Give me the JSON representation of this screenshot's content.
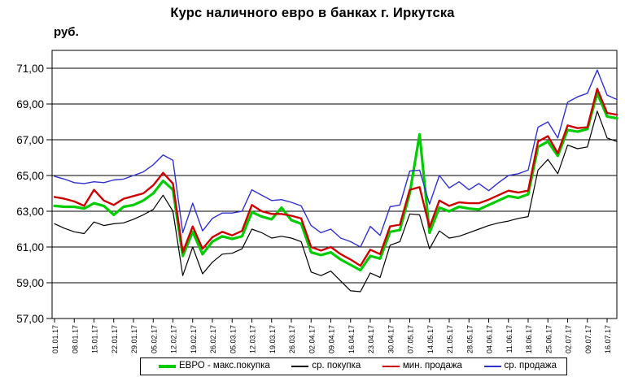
{
  "chart_data": {
    "type": "line",
    "title": "Курс наличного евро в банках г. Иркутска",
    "ylabel": "руб.",
    "xlabel": "",
    "ylim": [
      57,
      72
    ],
    "grid": "horizontal",
    "legend_position": "bottom",
    "y_ticks": [
      {
        "value": 71,
        "label": "71,00"
      },
      {
        "value": 69,
        "label": "69,00"
      },
      {
        "value": 67,
        "label": "67,00"
      },
      {
        "value": 65,
        "label": "65,00"
      },
      {
        "value": 63,
        "label": "63,00"
      },
      {
        "value": 61,
        "label": "61,00"
      },
      {
        "value": 59,
        "label": "59,00"
      },
      {
        "value": 57,
        "label": "57,00"
      }
    ],
    "x_tick_labels": [
      "01.01.17",
      "08.01.17",
      "15.01.17",
      "22.01.17",
      "29.01.17",
      "05.02.17",
      "12.02.17",
      "19.02.17",
      "26.02.17",
      "05.03.17",
      "12.03.17",
      "19.03.17",
      "26.03.17",
      "02.04.17",
      "09.04.17",
      "16.04.17",
      "23.04.17",
      "30.04.17",
      "07.05.17",
      "14.05.17",
      "21.05.17",
      "28.05.17",
      "04.06.17",
      "11.06.17",
      "18.06.17",
      "25.06.17",
      "02.07.17",
      "09.07.17",
      "16.07.17"
    ],
    "sampling_note": "values estimated twice weekly; 2 points per x tick",
    "series": [
      {
        "key": "max-buy",
        "name": "ЕВРО - макс.покупка",
        "color": "#00cc00",
        "stroke_width": 3.2,
        "values": [
          63.3,
          63.25,
          63.25,
          63.15,
          63.45,
          63.3,
          62.8,
          63.25,
          63.35,
          63.6,
          64.0,
          64.7,
          64.2,
          60.5,
          61.85,
          60.6,
          61.3,
          61.6,
          61.45,
          61.6,
          62.95,
          62.7,
          62.55,
          63.2,
          62.5,
          62.3,
          60.7,
          60.55,
          60.7,
          60.3,
          60.0,
          59.7,
          60.5,
          60.35,
          61.85,
          61.95,
          64.0,
          67.3,
          61.8,
          63.2,
          63.0,
          63.25,
          63.15,
          63.1,
          63.35,
          63.6,
          63.85,
          63.75,
          63.95,
          66.6,
          66.9,
          66.1,
          67.55,
          67.45,
          67.6,
          69.6,
          68.3,
          68.2
        ]
      },
      {
        "key": "avg-buy",
        "name": "ср. покупка",
        "color": "#000000",
        "stroke_width": 1.2,
        "values": [
          62.3,
          62.05,
          61.85,
          61.75,
          62.4,
          62.2,
          62.3,
          62.35,
          62.55,
          62.8,
          63.1,
          63.9,
          63.0,
          59.4,
          61.0,
          59.5,
          60.15,
          60.6,
          60.65,
          60.9,
          62.0,
          61.8,
          61.5,
          61.6,
          61.5,
          61.3,
          59.6,
          59.4,
          59.65,
          59.1,
          58.55,
          58.5,
          59.55,
          59.3,
          61.1,
          61.3,
          62.85,
          62.8,
          60.9,
          61.9,
          61.5,
          61.6,
          61.8,
          62.0,
          62.2,
          62.35,
          62.45,
          62.6,
          62.7,
          65.3,
          65.9,
          65.1,
          66.7,
          66.5,
          66.6,
          68.6,
          67.1,
          66.9
        ]
      },
      {
        "key": "min-sell",
        "name": "мин. продажа",
        "color": "#cc0000",
        "stroke_width": 2.4,
        "values": [
          63.8,
          63.7,
          63.55,
          63.3,
          64.2,
          63.6,
          63.35,
          63.7,
          63.85,
          64.0,
          64.45,
          65.15,
          64.55,
          60.7,
          62.15,
          60.9,
          61.55,
          61.85,
          61.65,
          61.9,
          63.35,
          63.0,
          62.85,
          62.85,
          62.75,
          62.6,
          61.0,
          60.8,
          61.0,
          60.6,
          60.3,
          59.95,
          60.85,
          60.6,
          62.15,
          62.25,
          64.2,
          64.35,
          62.1,
          63.6,
          63.3,
          63.5,
          63.45,
          63.45,
          63.65,
          63.9,
          64.15,
          64.05,
          64.15,
          66.9,
          67.2,
          66.25,
          67.8,
          67.65,
          67.7,
          69.85,
          68.5,
          68.4
        ]
      },
      {
        "key": "avg-sell",
        "name": "ср. продажа",
        "color": "#3030cc",
        "stroke_width": 1.4,
        "values": [
          64.95,
          64.8,
          64.6,
          64.55,
          64.65,
          64.6,
          64.75,
          64.8,
          65.0,
          65.2,
          65.6,
          66.15,
          65.85,
          61.8,
          63.45,
          61.9,
          62.6,
          62.9,
          62.9,
          63.0,
          64.2,
          63.9,
          63.6,
          63.65,
          63.5,
          63.3,
          62.2,
          61.8,
          62.0,
          61.5,
          61.3,
          61.0,
          62.15,
          61.65,
          63.25,
          63.35,
          65.25,
          65.3,
          63.4,
          65.0,
          64.3,
          64.65,
          64.2,
          64.55,
          64.15,
          64.6,
          65.0,
          65.1,
          65.3,
          67.7,
          68.0,
          67.1,
          69.1,
          69.4,
          69.6,
          70.9,
          69.5,
          69.25
        ]
      }
    ]
  }
}
